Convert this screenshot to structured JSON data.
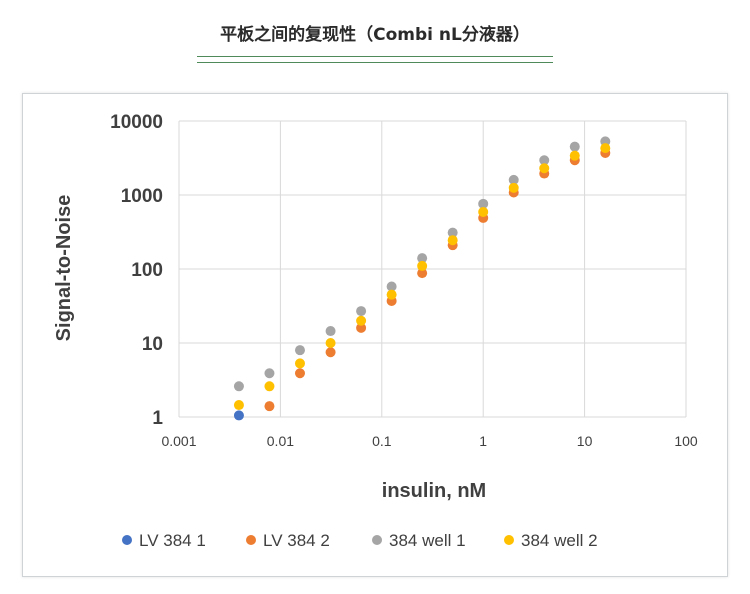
{
  "page": {
    "title": "平板之间的复现性（Combi nL分液器）"
  },
  "chart_data": {
    "type": "scatter",
    "title": "",
    "xlabel": "insulin, nM",
    "ylabel": "Signal-to-Noise",
    "x_scale": "log",
    "y_scale": "log",
    "xlim": [
      0.001,
      100
    ],
    "ylim": [
      1,
      10000
    ],
    "x_ticks": [
      "0.001",
      "0.01",
      "0.1",
      "1",
      "10",
      "100"
    ],
    "y_ticks": [
      "1",
      "10",
      "100",
      "1000",
      "10000"
    ],
    "grid": true,
    "legend_position": "bottom",
    "series": [
      {
        "name": "LV 384 1",
        "color": "#4472c4",
        "points": [
          [
            0.0039,
            1.05
          ]
        ]
      },
      {
        "name": "LV 384 2",
        "color": "#ed7d31",
        "points": [
          [
            0.0078,
            1.4
          ],
          [
            0.0156,
            3.9
          ],
          [
            0.03125,
            7.5
          ],
          [
            0.0625,
            16
          ],
          [
            0.125,
            37
          ],
          [
            0.25,
            88
          ],
          [
            0.5,
            210
          ],
          [
            1,
            490
          ],
          [
            2,
            1080
          ],
          [
            4,
            1950
          ],
          [
            8,
            2950
          ],
          [
            16,
            3700
          ]
        ]
      },
      {
        "name": "384 well 1",
        "color": "#a5a5a5",
        "points": [
          [
            0.0039,
            2.6
          ],
          [
            0.0078,
            3.9
          ],
          [
            0.0156,
            8
          ],
          [
            0.03125,
            14.5
          ],
          [
            0.0625,
            27
          ],
          [
            0.125,
            58
          ],
          [
            0.25,
            140
          ],
          [
            0.5,
            310
          ],
          [
            1,
            760
          ],
          [
            2,
            1600
          ],
          [
            4,
            2950
          ],
          [
            8,
            4500
          ],
          [
            16,
            5300
          ]
        ]
      },
      {
        "name": "384 well 2",
        "color": "#ffc000",
        "points": [
          [
            0.0039,
            1.45
          ],
          [
            0.0078,
            2.6
          ],
          [
            0.0156,
            5.3
          ],
          [
            0.03125,
            10
          ],
          [
            0.0625,
            20
          ],
          [
            0.125,
            45
          ],
          [
            0.25,
            110
          ],
          [
            0.5,
            245
          ],
          [
            1,
            590
          ],
          [
            2,
            1250
          ],
          [
            4,
            2300
          ],
          [
            8,
            3400
          ],
          [
            16,
            4300
          ]
        ]
      }
    ]
  }
}
